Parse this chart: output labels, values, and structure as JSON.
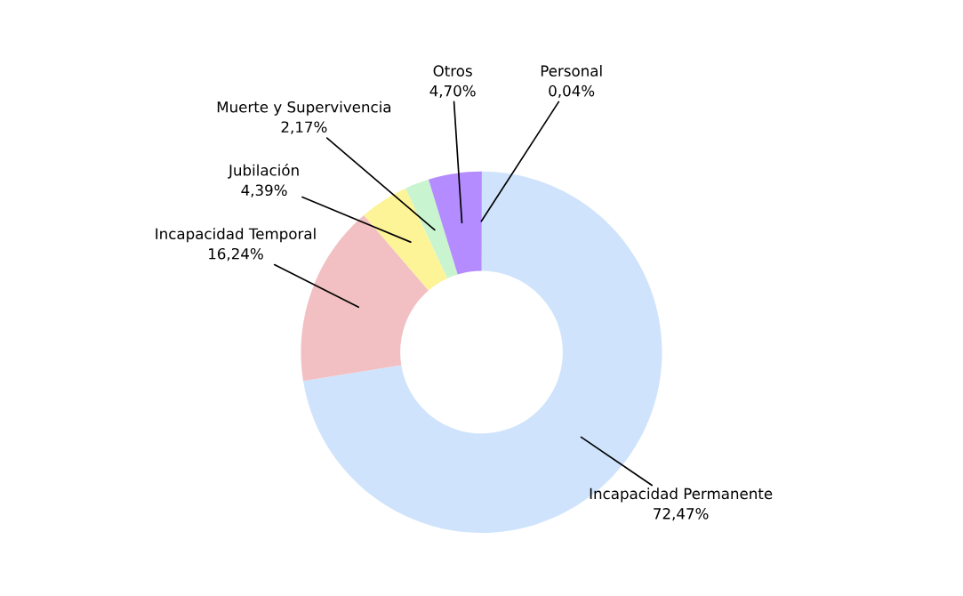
{
  "chart_data": {
    "type": "donut",
    "categories": [
      "Incapacidad Permanente",
      "Incapacidad Temporal",
      "Jubilación",
      "Muerte y Supervivencia",
      "Otros",
      "Personal"
    ],
    "values": [
      72.47,
      16.24,
      4.39,
      2.17,
      4.7,
      0.04
    ],
    "value_labels": [
      "72,47%",
      "16,24%",
      "4,39%",
      "2,17%",
      "4,70%",
      "0,04%"
    ],
    "colors": [
      "#cfe4fc",
      "#f2c0c2",
      "#fdf498",
      "#c8f5cf",
      "#b48cff",
      "#3a7be0"
    ]
  }
}
